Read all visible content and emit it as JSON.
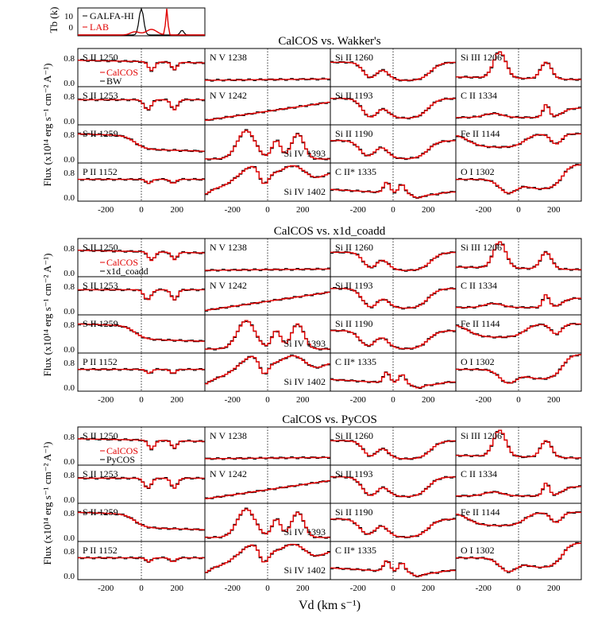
{
  "chart_data": {
    "type": "line",
    "x_axis_label": "Vd  (km s⁻¹)",
    "x_ticks": [
      "-200",
      "0",
      "200"
    ],
    "y_axis_label_flux": "Flux  (x10¹⁴ erg s⁻¹ cm⁻² A⁻¹)",
    "y_ticks_flux": [
      "0.0",
      "0.8"
    ],
    "top_panel": {
      "ylabel": "Tb (k)",
      "y_ticks": [
        "0",
        "10"
      ],
      "legend": [
        "GALFA-HI",
        "LAB"
      ],
      "series_colors": [
        "#000000",
        "#e00000"
      ]
    },
    "columns": [
      [
        "S II 1250",
        "S II 1253",
        "S II 1259",
        "P II 1152"
      ],
      [
        "N V 1238",
        "N V 1242",
        "Si IV 1393",
        "Si IV 1402"
      ],
      [
        "Si II 1260",
        "Si II 1193",
        "Si II 1190",
        "C II* 1335"
      ],
      [
        "Si III 1206",
        "C II 1334",
        "Fe II 1144",
        "O I 1302"
      ]
    ],
    "groups": [
      {
        "title": "CalCOS vs. Wakker's",
        "legend": [
          "CalCOS",
          "BW"
        ]
      },
      {
        "title": "CalCOS vs. x1d_coadd",
        "legend": [
          "CalCOS",
          "x1d_coadd"
        ]
      },
      {
        "title": "CalCOS vs. PyCOS",
        "legend": [
          "CalCOS",
          "PyCOS"
        ]
      }
    ],
    "series_colors": {
      "calcos": "#e00000",
      "other": "#000000"
    }
  }
}
